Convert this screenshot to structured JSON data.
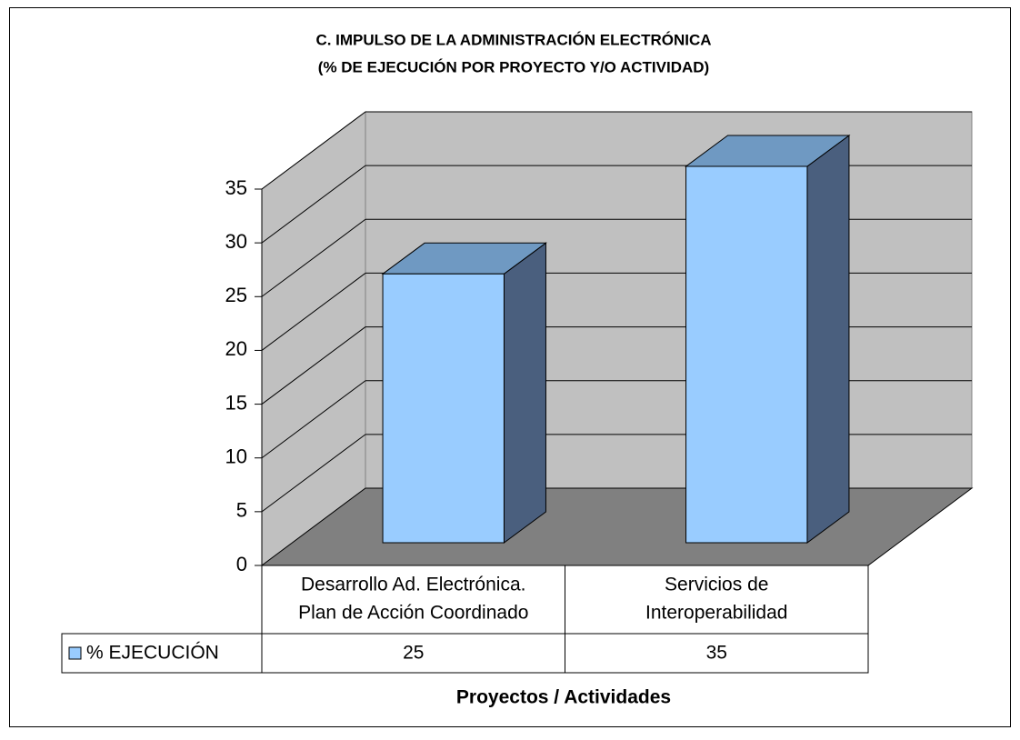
{
  "chart_data": {
    "type": "bar3d",
    "title": "C. IMPULSO DE LA ADMINISTRACIÓN ELECTRÓNICA",
    "subtitle": "(% DE EJECUCIÓN POR PROYECTO Y/O ACTIVIDAD)",
    "x_label": "Proyectos / Actividades",
    "categories": [
      [
        "Desarrollo Ad. Electrónica.",
        "Plan de Acción Coordinado"
      ],
      [
        "Servicios de",
        "Interoperabilidad"
      ]
    ],
    "series": [
      {
        "name": "% EJECUCIÓN",
        "color": "#99ccff",
        "values": [
          25,
          35
        ]
      }
    ],
    "ylim": [
      0,
      35
    ],
    "yticks": [
      0,
      5,
      10,
      15,
      20,
      25,
      30,
      35
    ],
    "grid": true,
    "data_table": true
  }
}
